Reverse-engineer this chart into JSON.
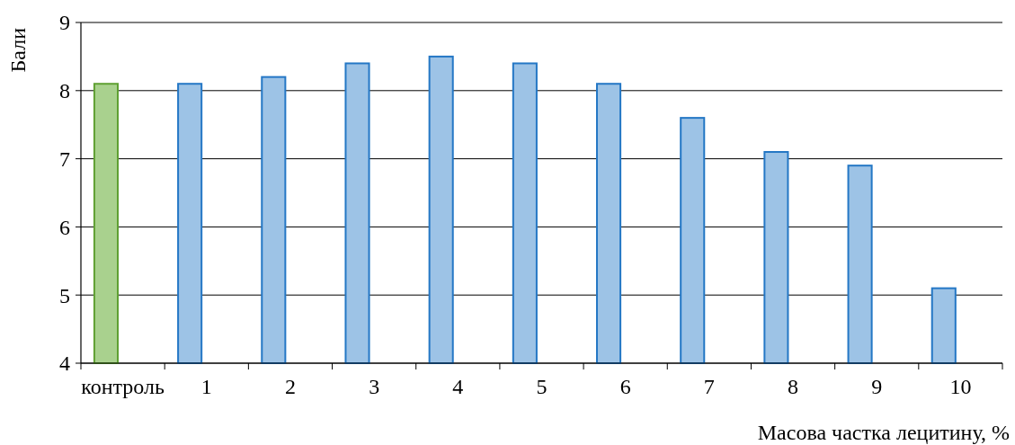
{
  "chart_data": {
    "type": "bar",
    "xlabel": "Масова частка лецитину, %",
    "ylabel": "Бали",
    "categories": [
      "контроль",
      "1",
      "2",
      "3",
      "4",
      "5",
      "6",
      "7",
      "8",
      "9",
      "10"
    ],
    "values": [
      8.1,
      8.1,
      8.2,
      8.4,
      8.5,
      8.4,
      8.1,
      7.6,
      7.1,
      6.9,
      5.1
    ],
    "colors": [
      "#a9d18e",
      "#9dc3e6",
      "#9dc3e6",
      "#9dc3e6",
      "#9dc3e6",
      "#9dc3e6",
      "#9dc3e6",
      "#9dc3e6",
      "#9dc3e6",
      "#9dc3e6",
      "#9dc3e6"
    ],
    "ylim": [
      4,
      9
    ],
    "yticks": [
      4,
      5,
      6,
      7,
      8,
      9
    ],
    "grid": "y"
  }
}
